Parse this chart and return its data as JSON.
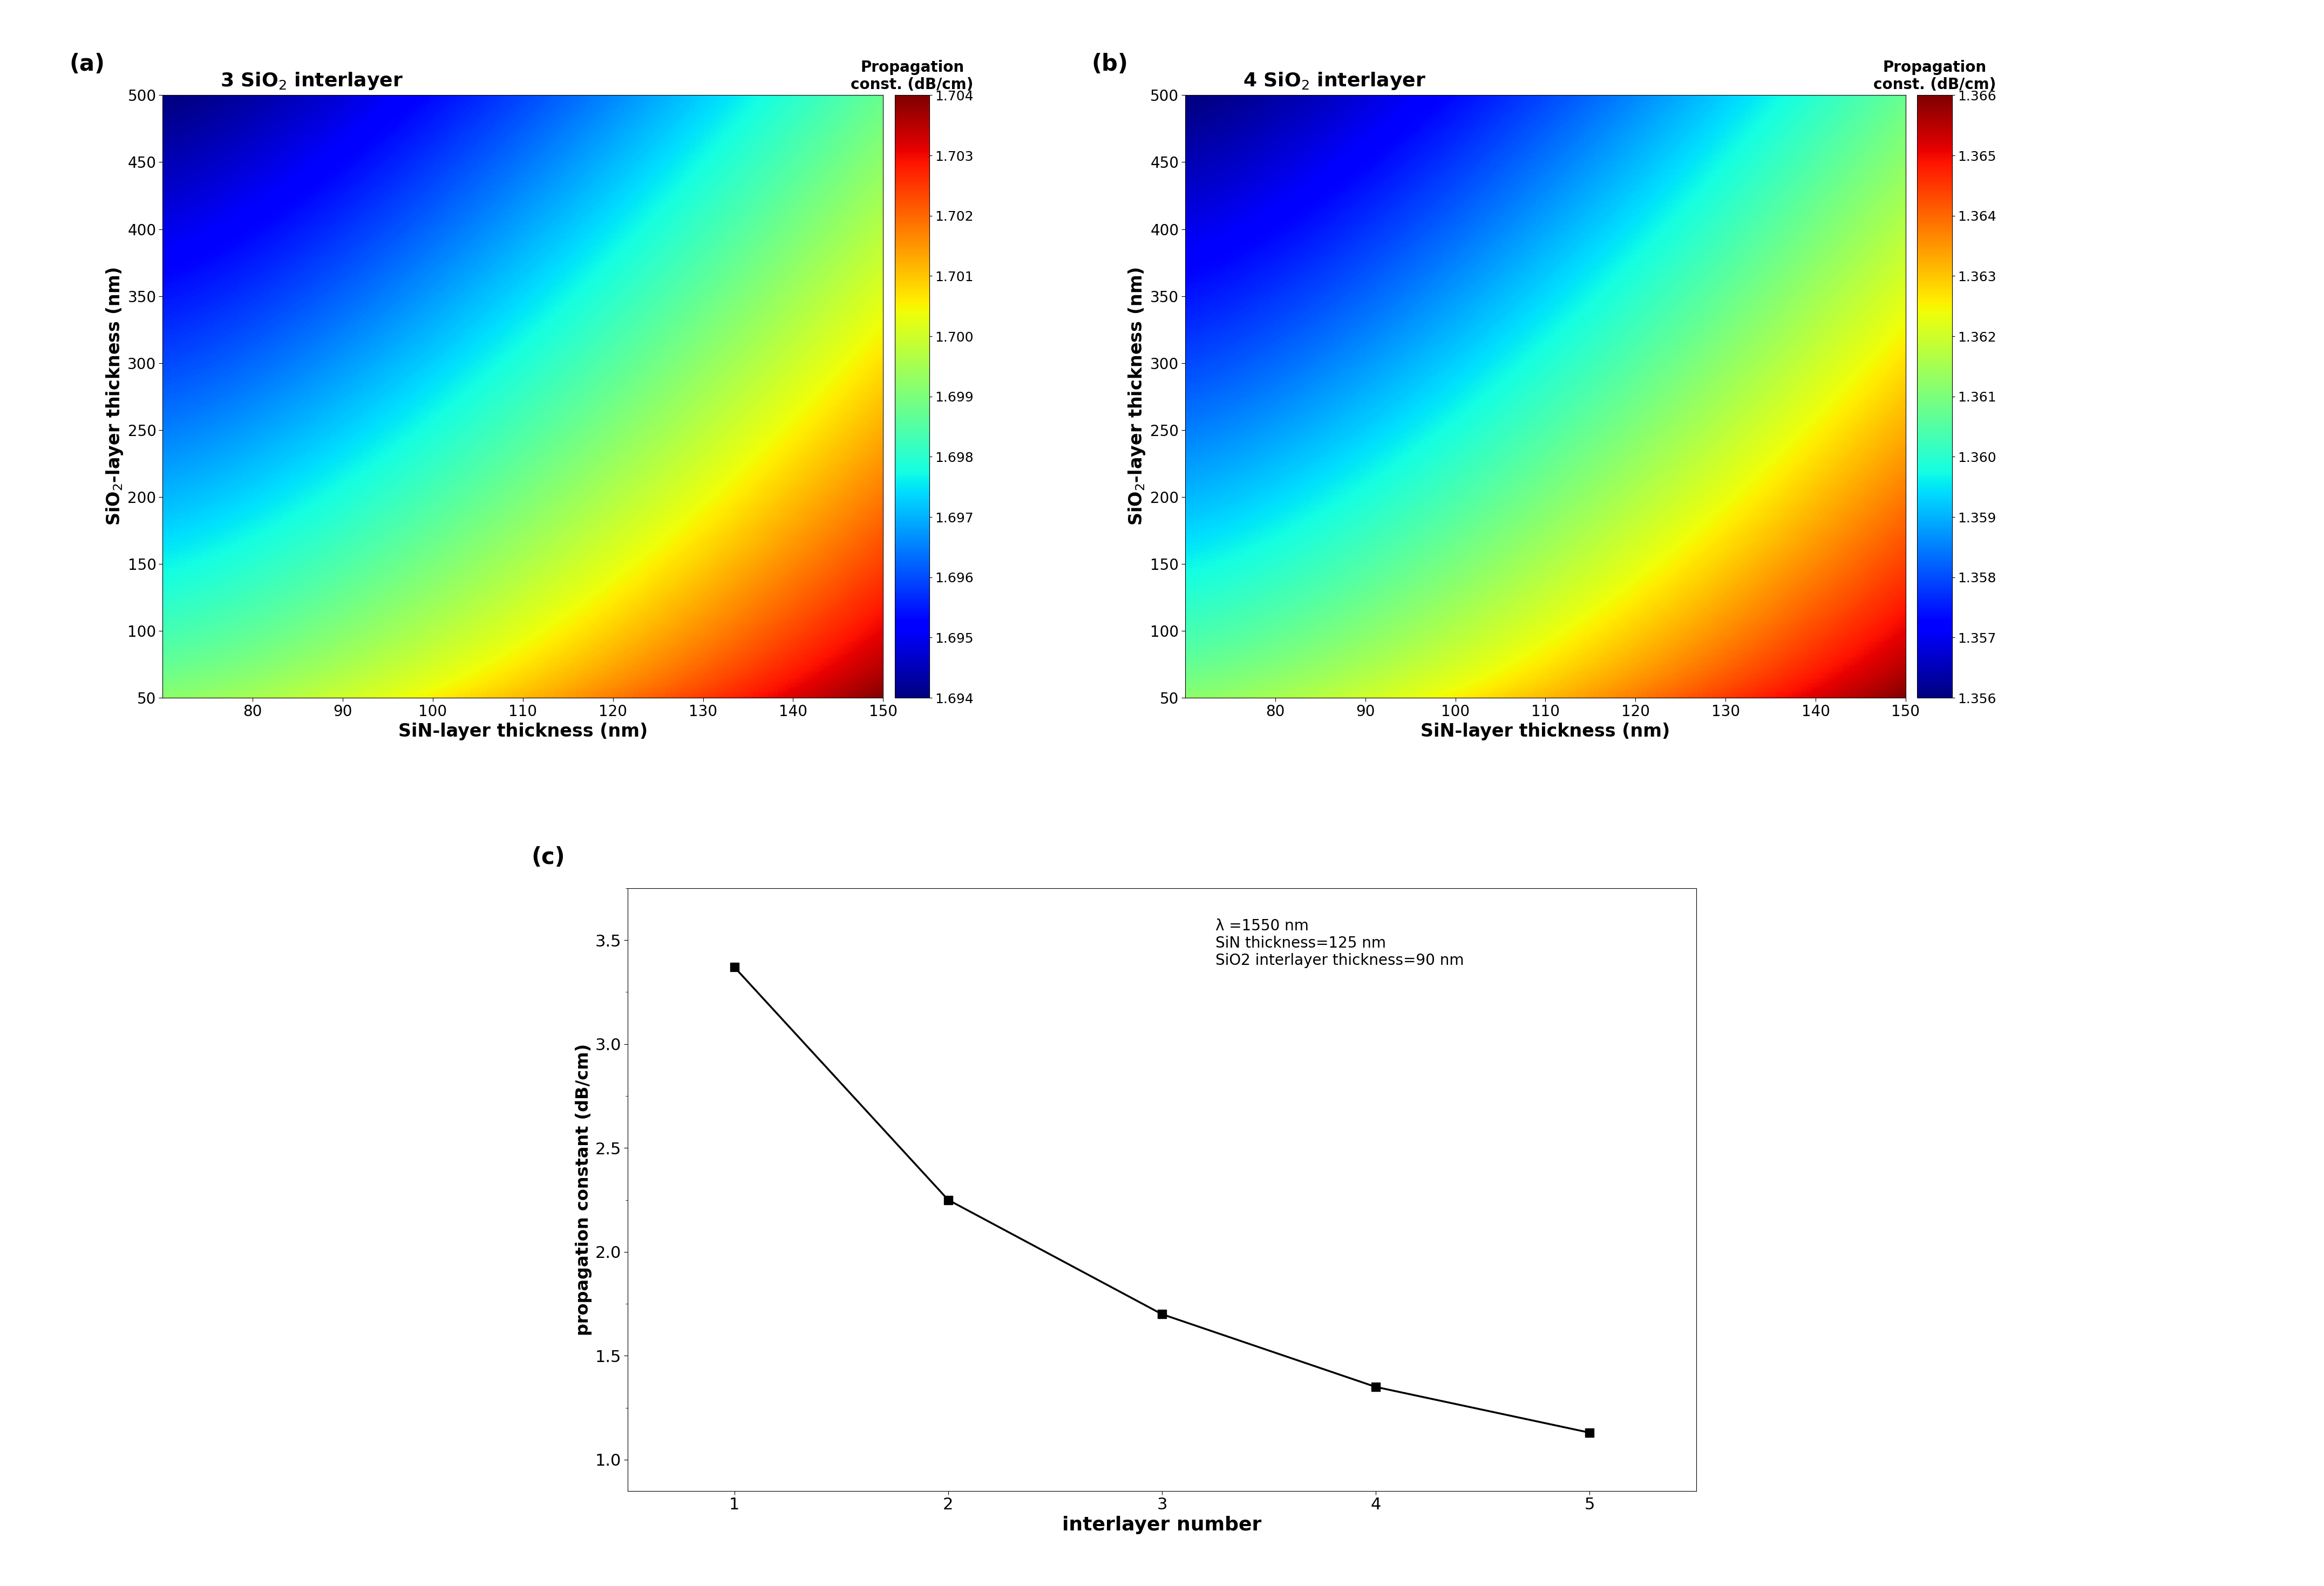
{
  "panel_a": {
    "title": "3 SiO$_2$ interlayer",
    "label": "(a)",
    "cbar_title": "Propagation\nconst. (dB/cm)",
    "xmin": 70,
    "xmax": 150,
    "ymin": 50,
    "ymax": 500,
    "vmin": 1.694,
    "vmax": 1.704,
    "cbar_ticks": [
      1.694,
      1.695,
      1.696,
      1.697,
      1.698,
      1.699,
      1.7,
      1.701,
      1.702,
      1.703,
      1.704
    ],
    "xticks": [
      80,
      90,
      100,
      110,
      120,
      130,
      140,
      150
    ],
    "yticks": [
      50,
      100,
      150,
      200,
      250,
      300,
      350,
      400,
      450,
      500
    ]
  },
  "panel_b": {
    "title": "4 SiO$_2$ interlayer",
    "label": "(b)",
    "cbar_title": "Propagation\nconst. (dB/cm)",
    "xmin": 70,
    "xmax": 150,
    "ymin": 50,
    "ymax": 500,
    "vmin": 1.356,
    "vmax": 1.366,
    "cbar_ticks": [
      1.356,
      1.357,
      1.358,
      1.359,
      1.36,
      1.361,
      1.362,
      1.363,
      1.364,
      1.365,
      1.366
    ],
    "xticks": [
      80,
      90,
      100,
      110,
      120,
      130,
      140,
      150
    ],
    "yticks": [
      50,
      100,
      150,
      200,
      250,
      300,
      350,
      400,
      450,
      500
    ]
  },
  "panel_c": {
    "label": "(c)",
    "x": [
      1,
      2,
      3,
      4,
      5
    ],
    "y": [
      3.37,
      2.25,
      1.7,
      1.35,
      1.13
    ],
    "xlabel": "interlayer number",
    "ylabel": "propagation constant (dB/cm)",
    "annotation": "λ =1550 nm\nSiN thickness=125 nm\nSiO2 interlayer thickness=90 nm",
    "xlim": [
      0.5,
      5.5
    ],
    "ylim": [
      0.85,
      3.75
    ],
    "xticks": [
      1,
      2,
      3,
      4,
      5
    ],
    "yticks": [
      1.0,
      1.5,
      2.0,
      2.5,
      3.0,
      3.5
    ]
  },
  "xlabel_colormaps": "SiN-layer thickness (nm)",
  "ylabel_colormaps": "SiO$_2$-layer thickness (nm)"
}
